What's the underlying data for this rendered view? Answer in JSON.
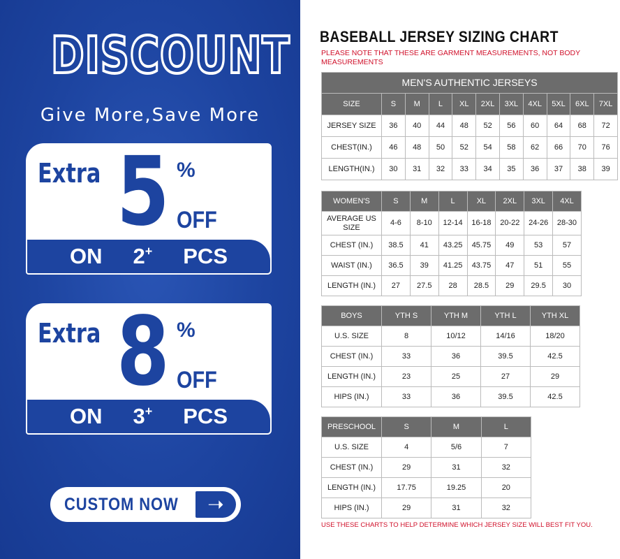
{
  "promo": {
    "title": "DISCOUNT",
    "subtitle": "Give More,Save More",
    "offers": [
      {
        "extra": "Extra",
        "value": "5",
        "percent": "%",
        "off": "OFF",
        "on": "ON",
        "qty": "2",
        "plus": "+",
        "pcs": "PCS"
      },
      {
        "extra": "Extra",
        "value": "8",
        "percent": "%",
        "off": "OFF",
        "on": "ON",
        "qty": "3",
        "plus": "+",
        "pcs": "PCS"
      }
    ],
    "button": {
      "label": "CUSTOM NOW",
      "icon": "arrow-right-icon"
    },
    "colors": {
      "brand_blue": "#1d44a0",
      "header_gray": "#6c6c6c",
      "note_red": "#d0102a"
    }
  },
  "chart": {
    "title": "BASEBALL JERSEY SIZING CHART",
    "note": "PLEASE NOTE THAT THESE ARE GARMENT MEASUREMENTS, NOT BODY MEASUREMENTS",
    "footer": "USE THESE CHARTS TO HELP DETERMINE WHICH JERSEY SIZE WILL BEST FIT YOU."
  },
  "chart_data": [
    {
      "type": "table",
      "caption": "MEN'S AUTHENTIC JERSEYS",
      "header": [
        "SIZE",
        "S",
        "M",
        "L",
        "XL",
        "2XL",
        "3XL",
        "4XL",
        "5XL",
        "6XL",
        "7XL"
      ],
      "rows": [
        [
          "JERSEY SIZE",
          "36",
          "40",
          "44",
          "48",
          "52",
          "56",
          "60",
          "64",
          "68",
          "72"
        ],
        [
          "CHEST(IN.)",
          "46",
          "48",
          "50",
          "52",
          "54",
          "58",
          "62",
          "66",
          "70",
          "76"
        ],
        [
          "LENGTH(IN.)",
          "30",
          "31",
          "32",
          "33",
          "34",
          "35",
          "36",
          "37",
          "38",
          "39"
        ]
      ]
    },
    {
      "type": "table",
      "header": [
        "WOMEN'S",
        "S",
        "M",
        "L",
        "XL",
        "2XL",
        "3XL",
        "4XL"
      ],
      "rows": [
        [
          "AVERAGE US SIZE",
          "4-6",
          "8-10",
          "12-14",
          "16-18",
          "20-22",
          "24-26",
          "28-30"
        ],
        [
          "CHEST (IN.)",
          "38.5",
          "41",
          "43.25",
          "45.75",
          "49",
          "53",
          "57"
        ],
        [
          "WAIST (IN.)",
          "36.5",
          "39",
          "41.25",
          "43.75",
          "47",
          "51",
          "55"
        ],
        [
          "LENGTH (IN.)",
          "27",
          "27.5",
          "28",
          "28.5",
          "29",
          "29.5",
          "30"
        ]
      ]
    },
    {
      "type": "table",
      "header": [
        "BOYS",
        "YTH S",
        "YTH M",
        "YTH L",
        "YTH XL"
      ],
      "rows": [
        [
          "U.S. SIZE",
          "8",
          "10/12",
          "14/16",
          "18/20"
        ],
        [
          "CHEST (IN.)",
          "33",
          "36",
          "39.5",
          "42.5"
        ],
        [
          "LENGTH (IN.)",
          "23",
          "25",
          "27",
          "29"
        ],
        [
          "HIPS (IN.)",
          "33",
          "36",
          "39.5",
          "42.5"
        ]
      ]
    },
    {
      "type": "table",
      "header": [
        "PRESCHOOL",
        "S",
        "M",
        "L"
      ],
      "rows": [
        [
          "U.S. SIZE",
          "4",
          "5/6",
          "7"
        ],
        [
          "CHEST (IN.)",
          "29",
          "31",
          "32"
        ],
        [
          "LENGTH (IN.)",
          "17.75",
          "19.25",
          "20"
        ],
        [
          "HIPS (IN.)",
          "29",
          "31",
          "32"
        ]
      ]
    }
  ]
}
